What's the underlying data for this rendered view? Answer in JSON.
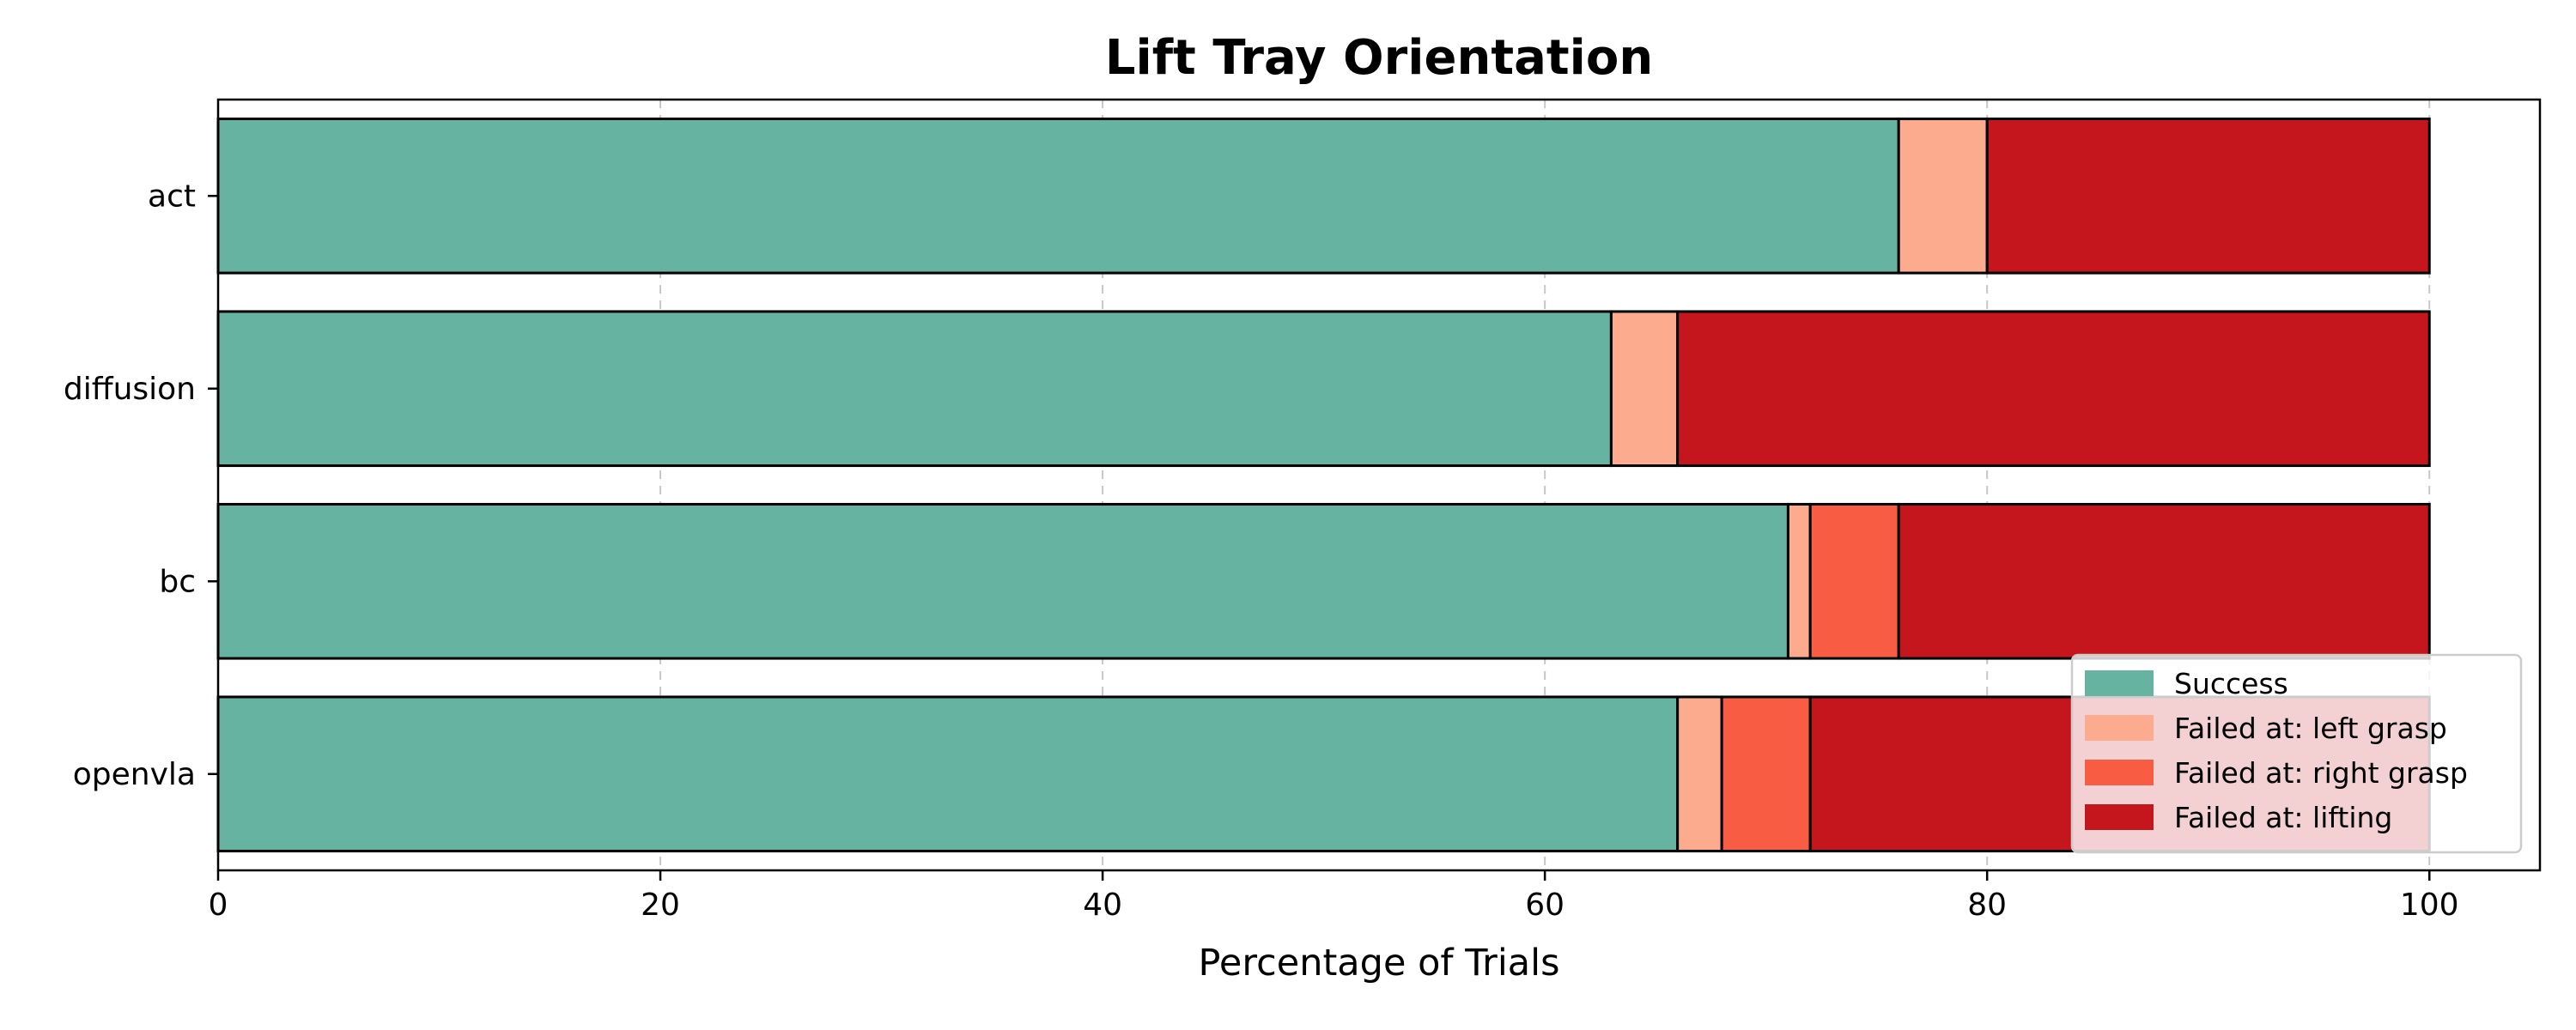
{
  "chart_data": {
    "type": "bar",
    "orientation": "horizontal",
    "stacked": true,
    "title": "Lift Tray Orientation",
    "xlabel": "Percentage of Trials",
    "ylabel": "",
    "xlim": [
      0,
      105
    ],
    "xticks": [
      0,
      20,
      40,
      60,
      80,
      100
    ],
    "grid": "x, dashed",
    "legend_position": "lower-right",
    "categories": [
      "act",
      "diffusion",
      "bc",
      "openvla"
    ],
    "series": [
      {
        "name": "Success",
        "color": "#67b3a2",
        "values": [
          76,
          63,
          71,
          66
        ]
      },
      {
        "name": "Failed at: left grasp",
        "color": "#fcab8f",
        "values": [
          4,
          3,
          1,
          2
        ]
      },
      {
        "name": "Failed at: right grasp",
        "color": "#f85d44",
        "values": [
          0,
          0,
          4,
          4
        ]
      },
      {
        "name": "Failed at: lifting",
        "color": "#c4161c",
        "values": [
          20,
          34,
          24,
          28
        ]
      }
    ]
  }
}
